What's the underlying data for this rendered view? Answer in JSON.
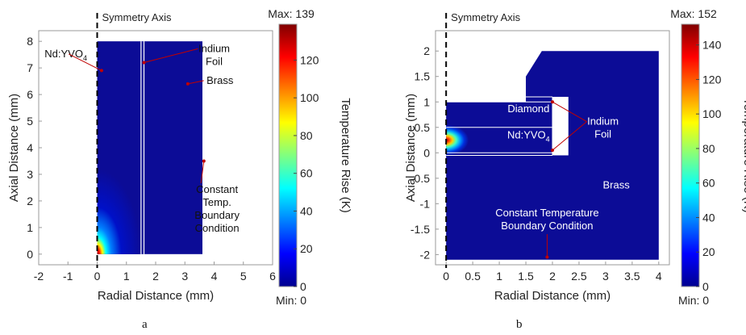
{
  "colors": {
    "bg_field": "#0c0c96",
    "foil": "#ffffff",
    "arrow": "#c00000",
    "annotation_text": "#ffffff",
    "colormap": [
      "#00008f",
      "#0000ff",
      "#0080ff",
      "#00ffff",
      "#80ff80",
      "#ffff00",
      "#ff8000",
      "#ff0000",
      "#800000"
    ]
  },
  "chart_data": [
    {
      "type": "heatmap",
      "panel_label": "a",
      "xlabel": "Radial Distance (mm)",
      "ylabel": "Axial Distance (mm)",
      "xlim": [
        -2,
        6
      ],
      "ylim": [
        -0.4,
        8.4
      ],
      "xticks": [
        -2,
        -1,
        0,
        1,
        2,
        3,
        4,
        5,
        6
      ],
      "yticks": [
        0,
        1,
        2,
        3,
        4,
        5,
        6,
        7,
        8
      ],
      "colorbar": {
        "label": "Temperature Rise (K)",
        "max_label": "Max: 139",
        "min_label": "Min: 0",
        "min": 0,
        "max": 139,
        "ticks": [
          0,
          20,
          40,
          60,
          80,
          100,
          120
        ]
      },
      "symmetry_label": "Symmetry Axis",
      "domain": {
        "r_max": 3.6,
        "z_min": 0,
        "z_max": 8
      },
      "foil_r": [
        1.5,
        1.6
      ],
      "hotspot": {
        "r": 0,
        "z": 0,
        "max": 139
      },
      "annotations": [
        {
          "name": "crystal",
          "text": "Nd:YVO",
          "sub": "4",
          "tx": -1.8,
          "ty": 7.4,
          "ax": 0.15,
          "ay": 6.9,
          "color": "dark"
        },
        {
          "name": "foil",
          "lines": [
            "Indium",
            "Foil"
          ],
          "tx": 4.0,
          "ty": 7.6,
          "ax": 1.6,
          "ay": 7.2,
          "color": "dark"
        },
        {
          "name": "brass",
          "lines": [
            "Brass"
          ],
          "tx": 4.2,
          "ty": 6.4,
          "ax": 3.1,
          "ay": 6.4,
          "color": "dark"
        },
        {
          "name": "boundary",
          "lines": [
            "Constant",
            "Temp.",
            "Boundary",
            "Condition"
          ],
          "tx": 4.1,
          "ty": 2.3,
          "ax": 3.65,
          "ay": 3.5,
          "color": "dark"
        }
      ]
    },
    {
      "type": "heatmap",
      "panel_label": "b",
      "xlabel": "Radial Distance (mm)",
      "ylabel": "Axial Distance (mm)",
      "xlim": [
        -0.2,
        4.2
      ],
      "ylim": [
        -2.2,
        2.4
      ],
      "xticks": [
        0,
        0.5,
        1,
        1.5,
        2,
        2.5,
        3,
        3.5,
        4
      ],
      "yticks": [
        -2,
        -1.5,
        -1,
        -0.5,
        0,
        0.5,
        1,
        1.5,
        2
      ],
      "colorbar": {
        "label": "Temperature Rise (K)",
        "max_label": "Max: 152",
        "min_label": "Min: 0",
        "min": 0,
        "max": 152,
        "ticks": [
          0,
          20,
          40,
          60,
          80,
          100,
          120,
          140
        ]
      },
      "symmetry_label": "Symmetry Axis",
      "hotspot": {
        "r": 0.05,
        "z": 0.25,
        "max": 152
      },
      "annotations": [
        {
          "name": "diamond",
          "lines": [
            "Diamond"
          ],
          "tx": 1.55,
          "ty": 0.8,
          "color": "light"
        },
        {
          "name": "crystal",
          "text": "Nd:YVO",
          "sub": "4",
          "tx": 1.55,
          "ty": 0.28,
          "color": "light"
        },
        {
          "name": "foil",
          "lines": [
            "Indium",
            "Foil"
          ],
          "tx": 2.95,
          "ty": 0.55,
          "ax": 2.0,
          "ay": 1.0,
          "ax2": 2.0,
          "ay2": 0.05,
          "color": "light"
        },
        {
          "name": "brass",
          "lines": [
            "Brass"
          ],
          "tx": 3.2,
          "ty": -0.7,
          "color": "light"
        },
        {
          "name": "boundary",
          "lines": [
            "Constant Temperature",
            "Boundary Condition"
          ],
          "tx": 1.9,
          "ty": -1.25,
          "ax": 1.9,
          "ay": -2.05,
          "color": "light"
        }
      ]
    }
  ]
}
